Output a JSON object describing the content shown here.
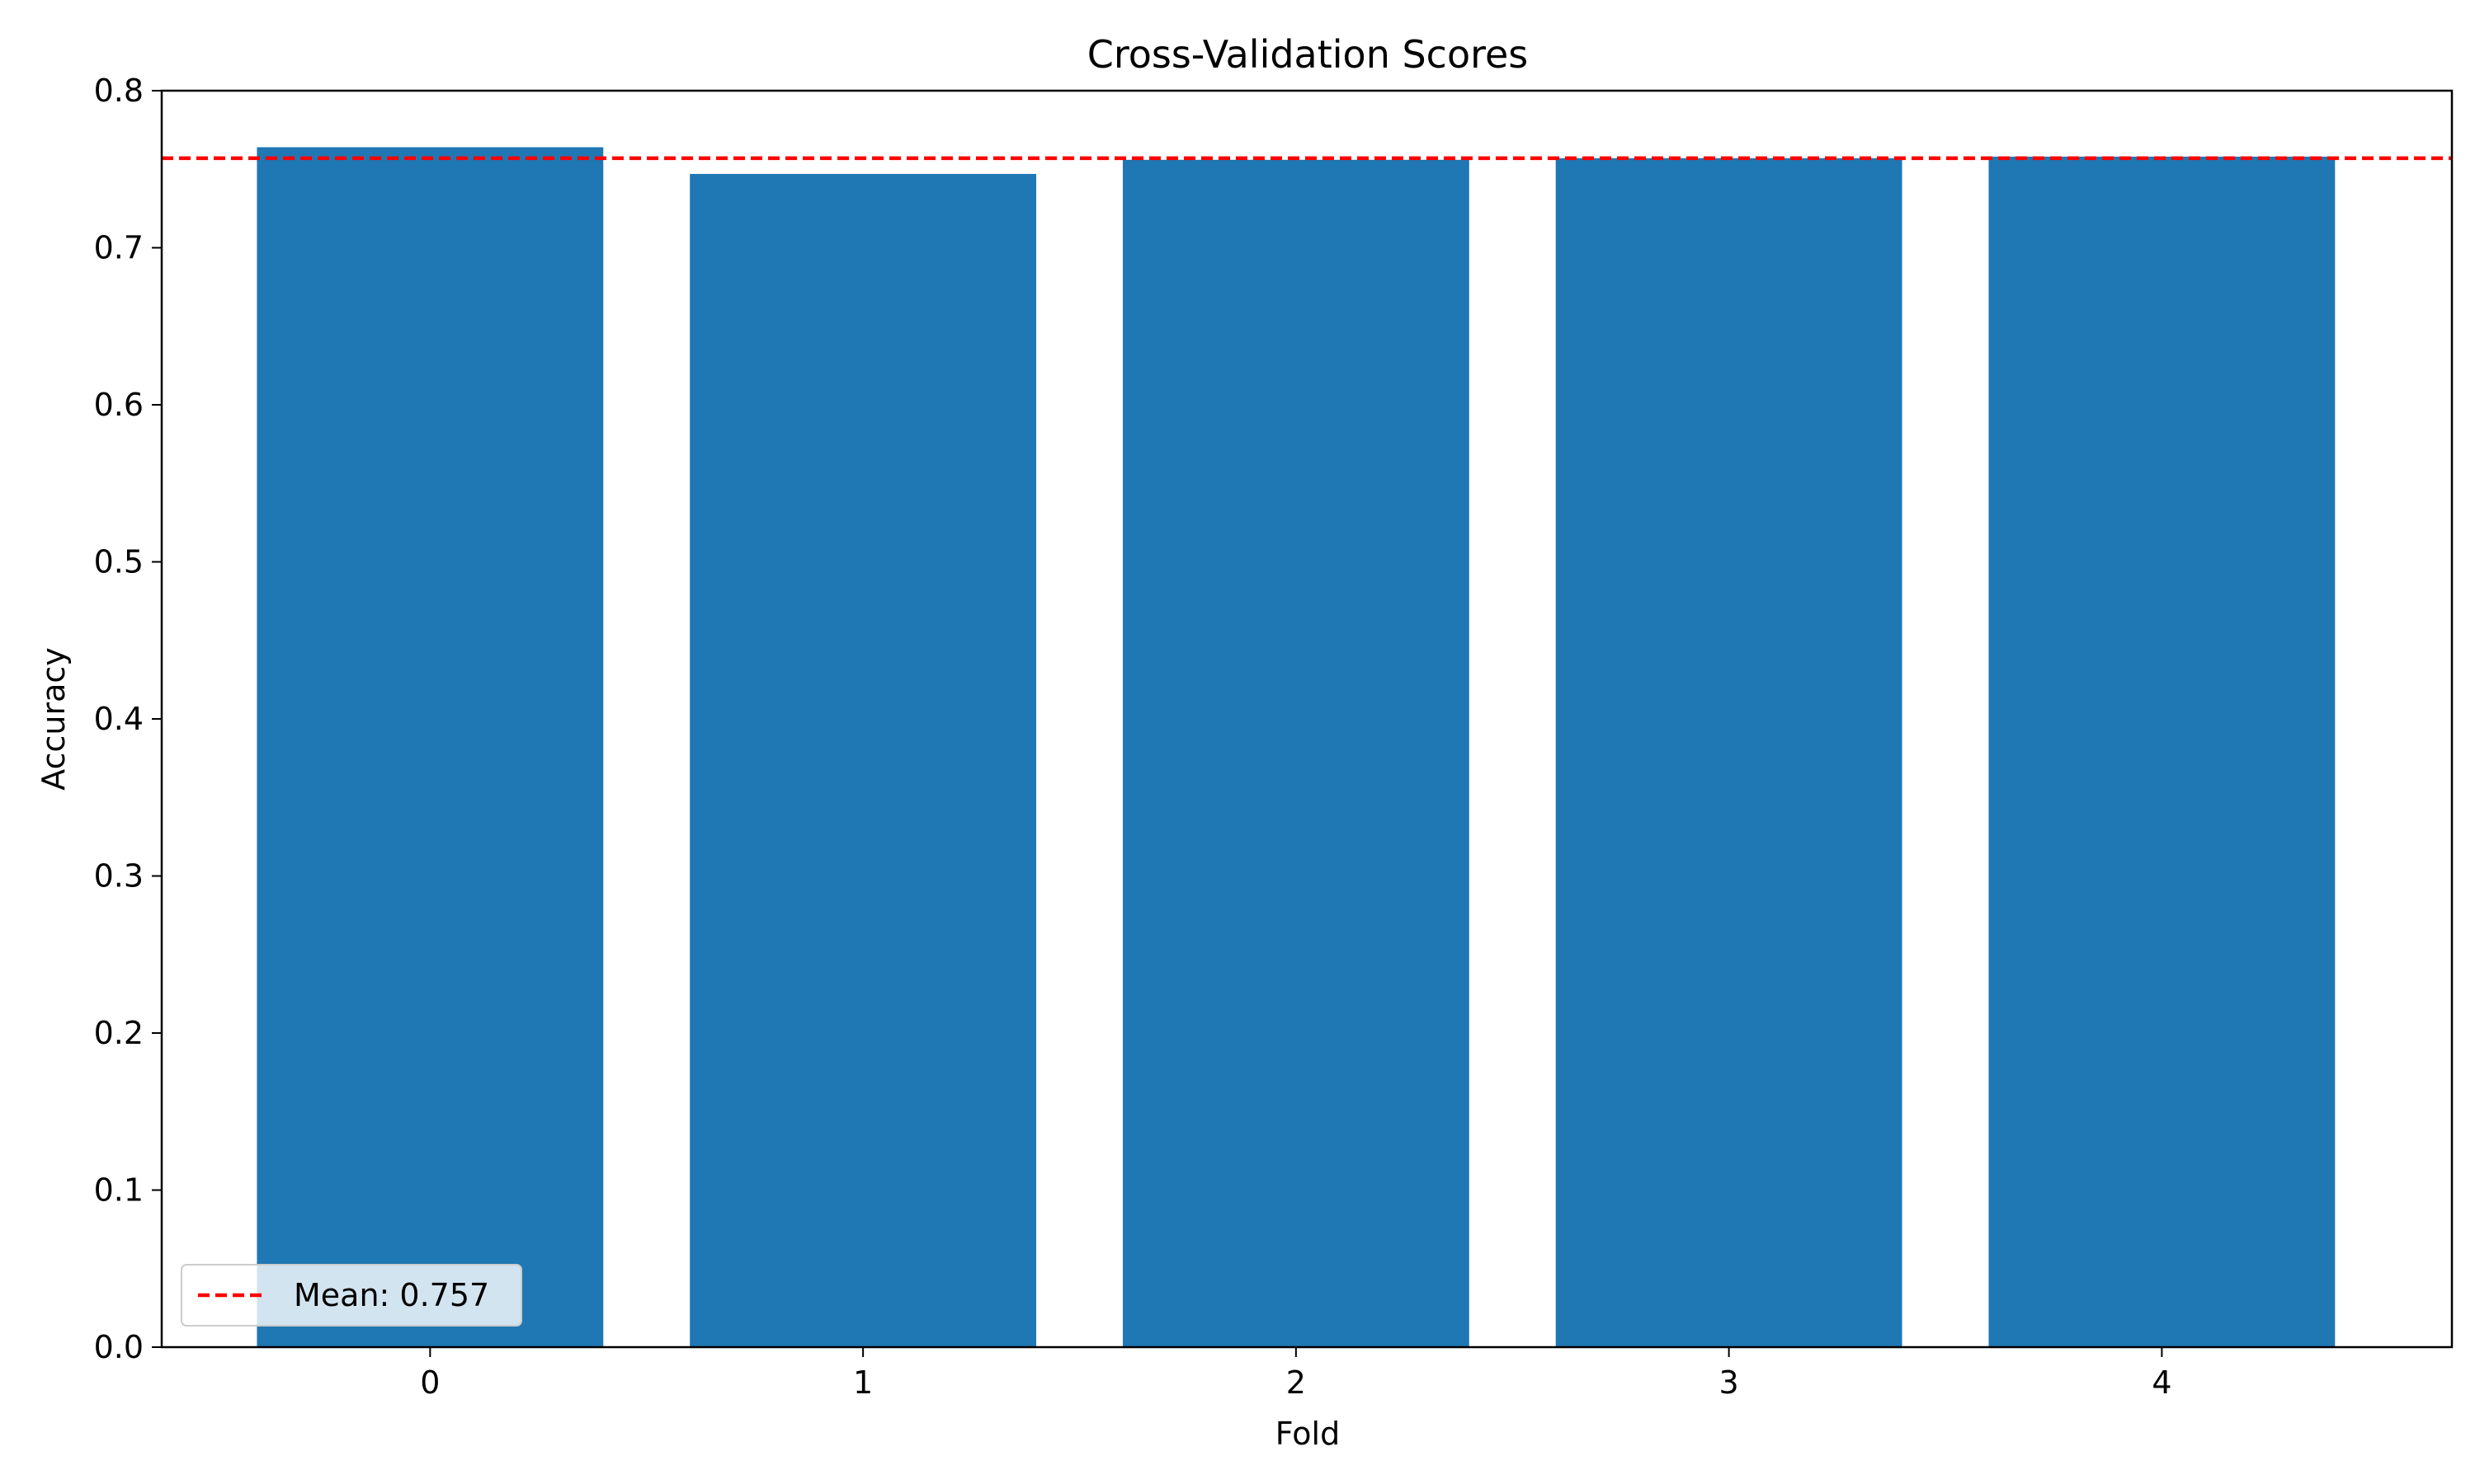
{
  "chart_data": {
    "type": "bar",
    "title": "Cross-Validation Scores",
    "xlabel": "Fold",
    "ylabel": "Accuracy",
    "categories": [
      "0",
      "1",
      "2",
      "3",
      "4"
    ],
    "values": [
      0.764,
      0.747,
      0.756,
      0.757,
      0.758
    ],
    "xlim": [
      -0.62,
      4.67
    ],
    "ylim": [
      0.0,
      0.8
    ],
    "yticks": [
      "0.0",
      "0.1",
      "0.2",
      "0.3",
      "0.4",
      "0.5",
      "0.6",
      "0.7",
      "0.8"
    ],
    "ytick_values": [
      0.0,
      0.1,
      0.2,
      0.3,
      0.4,
      0.5,
      0.6,
      0.7,
      0.8
    ],
    "mean_line": {
      "value": 0.757,
      "label": "Mean: 0.757",
      "style": "dashed",
      "color": "#ff0000"
    },
    "bar_color": "#1f77b4",
    "grid": false,
    "legend_position": "lower-left"
  }
}
